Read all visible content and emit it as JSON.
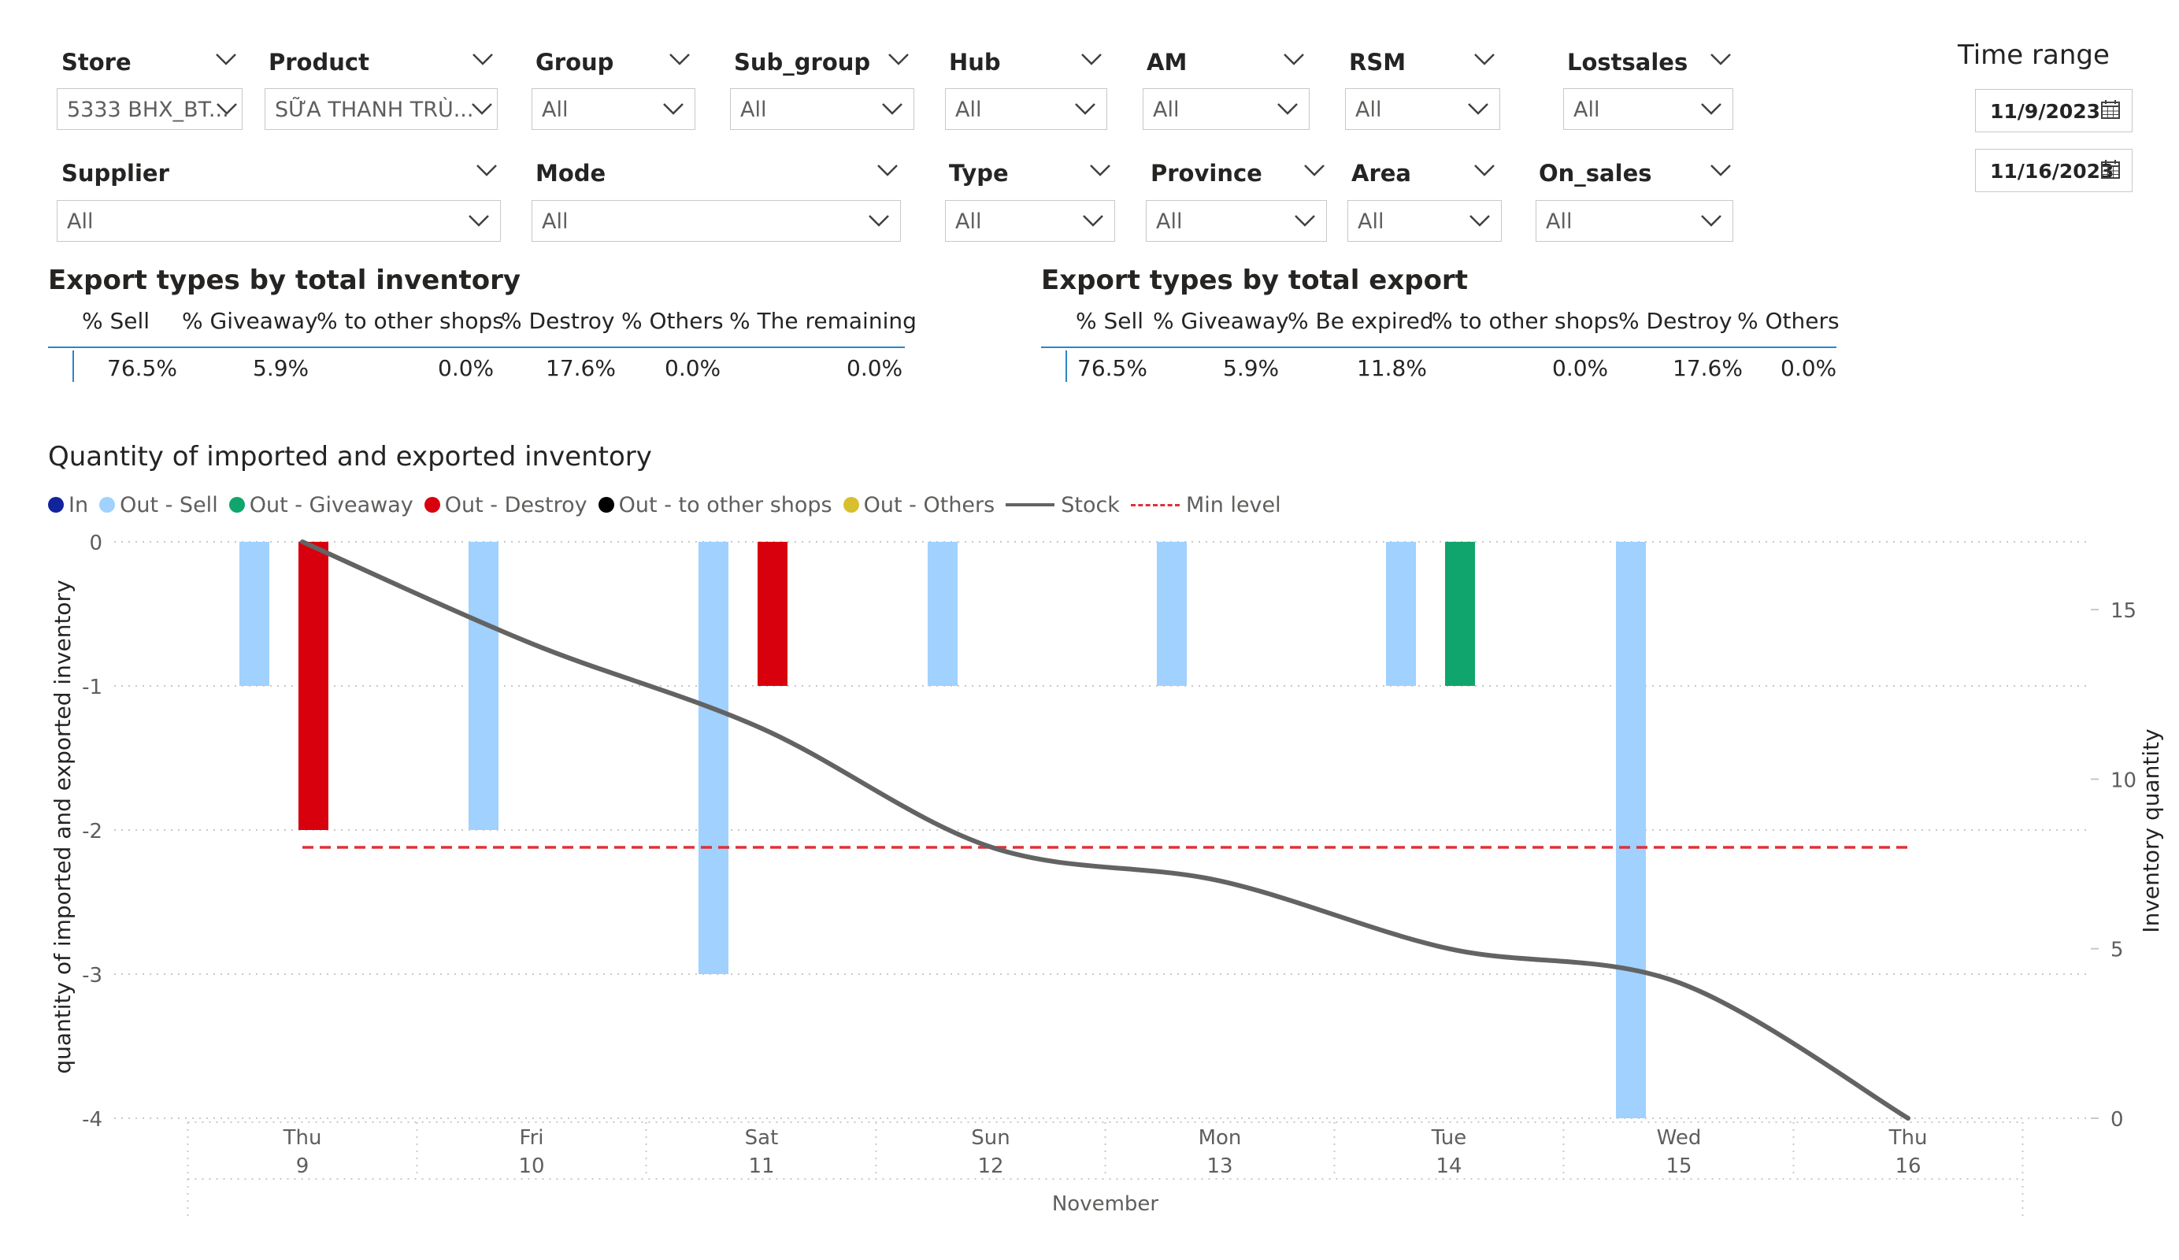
{
  "filters": {
    "row1": [
      {
        "label": "Store",
        "value": "5333 BHX_BT..."
      },
      {
        "label": "Product",
        "value": "SỮA THANH TRÙ..."
      },
      {
        "label": "Group",
        "value": "All"
      },
      {
        "label": "Sub_group",
        "value": "All"
      },
      {
        "label": "Hub",
        "value": "All"
      },
      {
        "label": "AM",
        "value": "All"
      },
      {
        "label": "RSM",
        "value": "All"
      },
      {
        "label": "Lostsales",
        "value": "All"
      }
    ],
    "row2": [
      {
        "label": "Supplier",
        "value": "All"
      },
      {
        "label": "Mode",
        "value": "All"
      },
      {
        "label": "Type",
        "value": "All"
      },
      {
        "label": "Province",
        "value": "All"
      },
      {
        "label": "Area",
        "value": "All"
      },
      {
        "label": "On_sales",
        "value": "All"
      }
    ]
  },
  "time_range": {
    "label": "Time range",
    "start": "11/9/2023",
    "end": "11/16/2023"
  },
  "inventory_table": {
    "title": "Export types by total inventory",
    "headers": [
      "% Sell",
      "% Giveaway",
      "% to other shops",
      "% Destroy",
      "% Others",
      "% The remaining"
    ],
    "values": [
      "76.5%",
      "5.9%",
      "0.0%",
      "17.6%",
      "0.0%",
      "0.0%"
    ]
  },
  "export_table": {
    "title": "Export types by total export",
    "headers": [
      "% Sell",
      "% Giveaway",
      "% Be expired",
      "% to other shops",
      "% Destroy",
      "% Others"
    ],
    "values": [
      "76.5%",
      "5.9%",
      "11.8%",
      "0.0%",
      "17.6%",
      "0.0%"
    ]
  },
  "colors": {
    "in": "#12239e",
    "sell": "#a0d1ff",
    "giveaway": "#10a56c",
    "destroy": "#d9000d",
    "other_shops": "#000000",
    "others": "#d8bf2e",
    "stock": "#636363",
    "min": "#e0303a",
    "accent": "#2a86c9"
  },
  "chart_data": {
    "type": "bar",
    "title": "Quantity of imported and exported inventory",
    "ylabel": "quantity of imported and exported inventory",
    "y2label": "Inventory quantity",
    "xlabel": "November",
    "ylim": [
      -4,
      0
    ],
    "y2lim": [
      0,
      17
    ],
    "yticks": [
      "0",
      "-1",
      "-2",
      "-3",
      "-4"
    ],
    "y2ticks": [
      "15",
      "10",
      "5",
      "0"
    ],
    "categories": [
      {
        "day": "Thu",
        "date": "9"
      },
      {
        "day": "Fri",
        "date": "10"
      },
      {
        "day": "Sat",
        "date": "11"
      },
      {
        "day": "Sun",
        "date": "12"
      },
      {
        "day": "Mon",
        "date": "13"
      },
      {
        "day": "Tue",
        "date": "14"
      },
      {
        "day": "Wed",
        "date": "15"
      },
      {
        "day": "Thu",
        "date": "16"
      }
    ],
    "series": [
      {
        "name": "In",
        "kind": "bar",
        "values": [
          0,
          0,
          0,
          0,
          0,
          0,
          0,
          0
        ]
      },
      {
        "name": "Out - Sell",
        "kind": "bar",
        "values": [
          -1,
          -2,
          -3,
          -1,
          -1,
          -1,
          -4,
          0
        ]
      },
      {
        "name": "Out - Giveaway",
        "kind": "bar",
        "values": [
          0,
          0,
          0,
          0,
          0,
          -1,
          0,
          0
        ]
      },
      {
        "name": "Out - Destroy",
        "kind": "bar",
        "values": [
          -2,
          0,
          -1,
          0,
          0,
          0,
          0,
          0
        ]
      },
      {
        "name": "Out - to other shops",
        "kind": "bar",
        "values": [
          0,
          0,
          0,
          0,
          0,
          0,
          0,
          0
        ]
      },
      {
        "name": "Out - Others",
        "kind": "bar",
        "values": [
          0,
          0,
          0,
          0,
          0,
          0,
          0,
          0
        ]
      },
      {
        "name": "Stock",
        "kind": "line",
        "axis": "y2",
        "values": [
          17,
          14,
          11.5,
          8,
          7,
          5,
          4,
          0
        ]
      },
      {
        "name": "Min level",
        "kind": "dashed-line",
        "axis": "y",
        "values": [
          -2.12,
          -2.12,
          -2.12,
          -2.12,
          -2.12,
          -2.12,
          -2.12,
          -2.12
        ]
      }
    ],
    "grid": true,
    "legend": "top-left"
  }
}
